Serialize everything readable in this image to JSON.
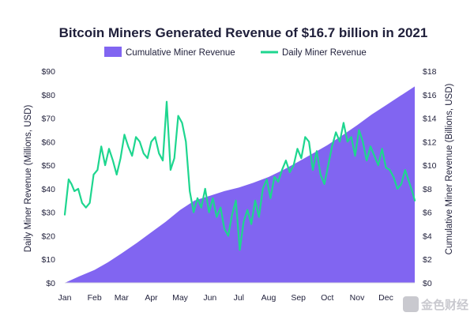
{
  "chart_data": {
    "type": "line",
    "title": "Bitcoin Miners Generated Revenue of $16.7 billion in 2021",
    "x_tick_labels": [
      "Jan",
      "Feb",
      "Mar",
      "Apr",
      "May",
      "Jun",
      "Jul",
      "Aug",
      "Sep",
      "Oct",
      "Nov",
      "Dec"
    ],
    "x_tick_days": [
      0,
      31,
      59,
      90,
      120,
      151,
      181,
      212,
      243,
      273,
      304,
      334
    ],
    "xlim_days": [
      0,
      364
    ],
    "ylabel_left": "Daily Miner Revenue (Millions, USD)",
    "ylabel_right": "Cumulative Miner Revenue (Billions, USD)",
    "ylim_left": [
      0,
      90
    ],
    "ylim_right": [
      0,
      18
    ],
    "yticks_left": [
      "$0",
      "$10",
      "$20",
      "$30",
      "$40",
      "$50",
      "$60",
      "$70",
      "$80",
      "$90"
    ],
    "yticks_right": [
      "$0",
      "$2",
      "$4",
      "$6",
      "$8",
      "$10",
      "$12",
      "$14",
      "$16",
      "$18"
    ],
    "legend_position": "top-center",
    "series": [
      {
        "name": "Cumulative Miner Revenue",
        "type": "area",
        "axis": "right",
        "color": "#8165f1",
        "x_days": [
          0,
          15,
          31,
          45,
          59,
          75,
          90,
          105,
          120,
          135,
          151,
          166,
          181,
          196,
          212,
          227,
          243,
          258,
          273,
          288,
          304,
          319,
          334,
          349,
          364
        ],
        "values": [
          0.0,
          0.55,
          1.1,
          1.75,
          2.5,
          3.4,
          4.3,
          5.2,
          6.2,
          7.0,
          7.4,
          7.8,
          8.1,
          8.5,
          9.0,
          9.6,
          10.3,
          11.0,
          11.7,
          12.5,
          13.4,
          14.3,
          15.1,
          15.9,
          16.7
        ]
      },
      {
        "name": "Daily Miner Revenue",
        "type": "line",
        "axis": "left",
        "color": "#1ed68f",
        "x_days": [
          0,
          4,
          7,
          10,
          14,
          18,
          22,
          26,
          30,
          34,
          38,
          42,
          46,
          50,
          54,
          58,
          62,
          66,
          70,
          74,
          78,
          82,
          86,
          90,
          94,
          98,
          102,
          106,
          110,
          114,
          118,
          122,
          126,
          130,
          134,
          138,
          142,
          146,
          150,
          154,
          158,
          162,
          166,
          170,
          174,
          178,
          182,
          186,
          190,
          194,
          198,
          202,
          206,
          210,
          214,
          218,
          222,
          226,
          230,
          234,
          238,
          242,
          246,
          250,
          254,
          258,
          262,
          266,
          270,
          274,
          278,
          282,
          286,
          290,
          294,
          298,
          302,
          306,
          310,
          314,
          318,
          322,
          326,
          330,
          334,
          338,
          342,
          346,
          350,
          354,
          358,
          362,
          364
        ],
        "values": [
          29,
          44,
          42,
          39,
          40,
          34,
          32,
          34,
          46,
          48,
          58,
          50,
          57,
          52,
          46,
          53,
          63,
          58,
          54,
          62,
          60,
          55,
          53,
          60,
          62,
          55,
          52,
          77,
          48,
          53,
          71,
          68,
          60,
          39,
          30,
          36,
          32,
          40,
          30,
          36,
          28,
          32,
          23,
          20,
          29,
          35,
          14,
          26,
          31,
          25,
          35,
          28,
          40,
          44,
          36,
          45,
          43,
          48,
          52,
          47,
          50,
          57,
          53,
          62,
          60,
          48,
          56,
          46,
          42,
          50,
          58,
          64,
          60,
          68,
          60,
          62,
          54,
          65,
          60,
          52,
          58,
          54,
          50,
          57,
          49,
          48,
          45,
          40,
          42,
          48,
          43,
          38,
          35
        ]
      }
    ]
  },
  "watermark": {
    "text": "金色财经"
  }
}
